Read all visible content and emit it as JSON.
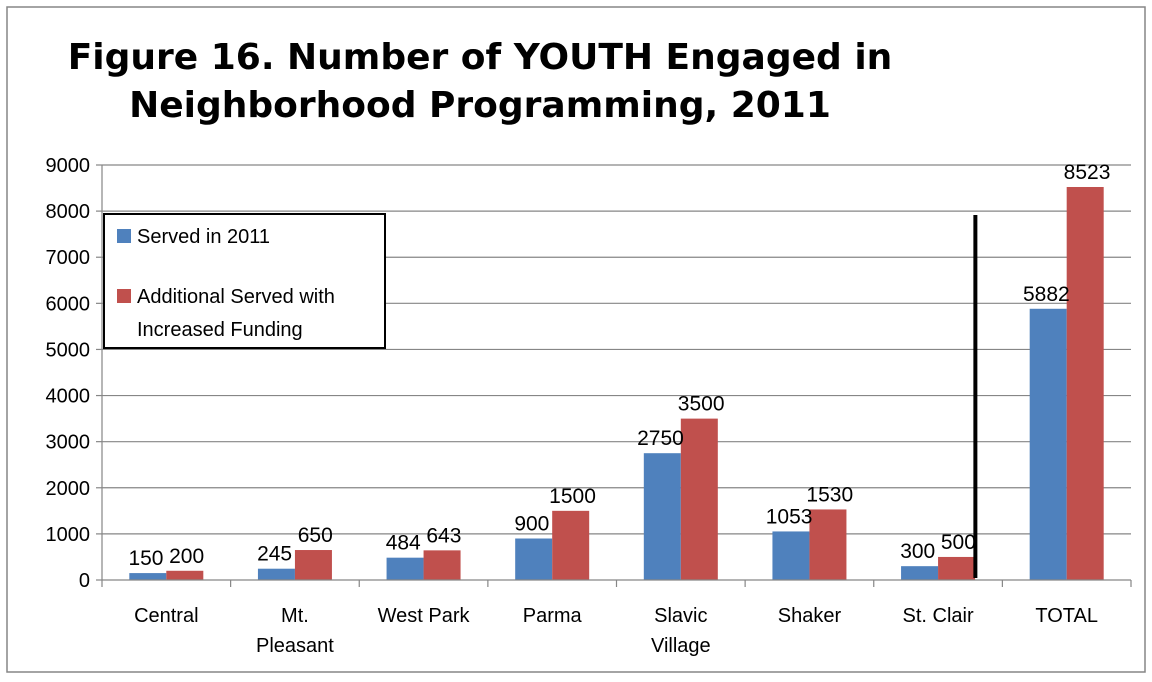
{
  "chart_data": {
    "type": "bar",
    "title_lines": [
      "Figure 16. Number of YOUTH Engaged in",
      "Neighborhood Programming, 2011"
    ],
    "categories": [
      [
        "Central"
      ],
      [
        "Mt.",
        "Pleasant"
      ],
      [
        "West Park"
      ],
      [
        "Parma"
      ],
      [
        "Slavic",
        "Village"
      ],
      [
        "Shaker"
      ],
      [
        "St. Clair"
      ],
      [
        "TOTAL"
      ]
    ],
    "series": [
      {
        "name": "Served in 2011",
        "color": "#4f81bd",
        "values": [
          150,
          245,
          484,
          900,
          2750,
          1053,
          300,
          5882
        ]
      },
      {
        "name_lines": [
          "Additional Served with",
          "Increased Funding"
        ],
        "color": "#c0504d",
        "values": [
          200,
          650,
          643,
          1500,
          3500,
          1530,
          500,
          8523
        ]
      }
    ],
    "ylim": [
      0,
      9000
    ],
    "yticks": [
      0,
      1000,
      2000,
      3000,
      4000,
      5000,
      6000,
      7000,
      8000,
      9000
    ],
    "grid": true,
    "legend_position": "top-left",
    "separator_before_category": 7
  }
}
